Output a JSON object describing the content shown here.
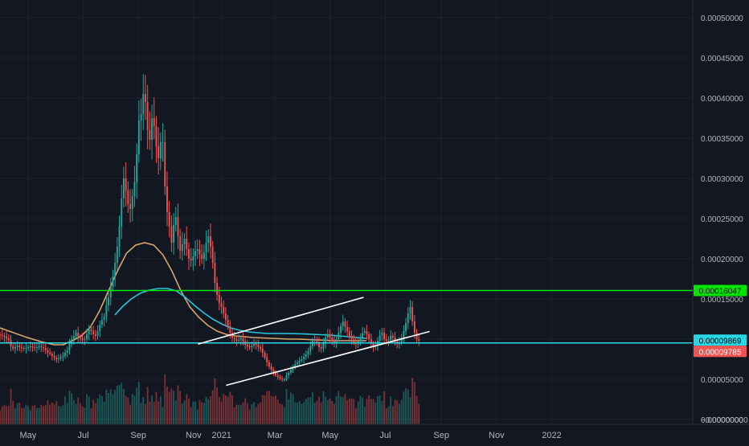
{
  "chart_data": {
    "type": "candlestick",
    "y_axis": {
      "ticks": [
        "0.00050000",
        "0.00045000",
        "0.00040000",
        "0.00035000",
        "0.00030000",
        "0.00025000",
        "0.00020000",
        "0.00015000",
        "0.00010000",
        "0.00005000",
        "0.00000000",
        "−0.00000000"
      ],
      "tick_values": [
        0.0005,
        0.00045,
        0.0004,
        0.00035,
        0.0003,
        0.00025,
        0.0002,
        0.00015,
        0.0001,
        5e-05,
        0.0,
        -1e-07
      ],
      "range": [
        -6e-06,
        0.000522
      ]
    },
    "x_axis": {
      "labels": [
        "May",
        "Jul",
        "Sep",
        "Nov",
        "2021",
        "Mar",
        "May",
        "Jul",
        "Sep",
        "Nov",
        "2022"
      ],
      "label_positions_days": [
        -214,
        -153,
        -92,
        -31,
        0,
        59,
        120,
        181,
        243,
        304,
        365
      ],
      "range_days": [
        -245,
        521
      ]
    },
    "price_tags": [
      {
        "value": "0.00016047",
        "price": 0.00016047,
        "color": "#00e600",
        "text_color": "#000000"
      },
      {
        "value": "0.00009869",
        "price": 9.869e-05,
        "color": "#26d7e6",
        "text_color": "#000000"
      },
      {
        "value": "0.00009785",
        "price": 9.785e-05,
        "color": "#f05350",
        "text_color": "#ffffff"
      }
    ],
    "horizontal_lines": [
      {
        "price": 0.00016047,
        "color": "#00e600"
      },
      {
        "price": 9.52e-05,
        "color": "#26d7e6"
      }
    ],
    "channel_lines": [
      {
        "from": {
          "day": -26,
          "price": 9.38e-05
        },
        "to": {
          "day": 157,
          "price": 0.000152
        }
      },
      {
        "from": {
          "day": 5,
          "price": 4.25e-05
        },
        "to": {
          "day": 230,
          "price": 0.0001095
        }
      }
    ],
    "ma_slow": {
      "color": "#d8a56c",
      "days": [
        -245,
        -230,
        -215,
        -200,
        -185,
        -175,
        -165,
        -155,
        -145,
        -135,
        -125,
        -115,
        -105,
        -95,
        -85,
        -75,
        -65,
        -55,
        -45,
        -35,
        -25,
        -15,
        -5,
        5,
        15,
        25,
        35,
        45,
        55,
        65,
        75,
        85,
        95,
        105,
        115,
        125,
        135,
        145,
        155,
        160
      ],
      "values": [
        0.000114,
        0.000108,
        0.000102,
        9.7e-05,
        9.3e-05,
        9.3e-05,
        9.8e-05,
        0.000104,
        0.000115,
        0.000135,
        0.00016,
        0.000185,
        0.000207,
        0.000217,
        0.00022,
        0.000217,
        0.000205,
        0.000185,
        0.00016,
        0.00014,
        0.000127,
        0.000117,
        0.00011,
        0.000106,
        0.000104,
        0.000103,
        0.000102,
        0.0001015,
        0.000101,
        0.0001005,
        0.0001,
        0.0001,
        9.95e-05,
        9.9e-05,
        9.85e-05,
        9.8e-05,
        9.8e-05,
        9.8e-05,
        9.8e-05,
        9.8e-05
      ]
    },
    "ma_fast": {
      "color": "#26c6da",
      "days": [
        -118,
        -110,
        -100,
        -90,
        -80,
        -70,
        -60,
        -50,
        -40,
        -30,
        -20,
        -10,
        0,
        10,
        20,
        30,
        40,
        50,
        60,
        70,
        80,
        90,
        100,
        110,
        120,
        130,
        140,
        150,
        160
      ],
      "values": [
        0.00013,
        0.00014,
        0.00015,
        0.000157,
        0.000161,
        0.000163,
        0.000163,
        0.00016,
        0.000152,
        0.000142,
        0.000133,
        0.000125,
        0.000119,
        0.000114,
        0.000111,
        0.000109,
        0.000108,
        0.000107,
        0.000107,
        0.000107,
        0.0001068,
        0.0001065,
        0.000106,
        0.0001055,
        0.000105,
        0.000104,
        0.000103,
        0.000102,
        0.000101
      ]
    },
    "candles": {
      "start_day": -245,
      "step_days": 2.4,
      "up_color": "#26a69a",
      "down_color": "#ef5350",
      "close": [
        0.000105,
        0.000104,
        0.000103,
        0.000101,
        9.9e-05,
        9.1e-05,
        8.8e-05,
        9e-05,
        9.2e-05,
        9e-05,
        8.9e-05,
        8.8e-05,
        8.9e-05,
        9e-05,
        9.1e-05,
        9e-05,
        8.9e-05,
        9e-05,
        9.1e-05,
        9e-05,
        8.9e-05,
        8.6e-05,
        8.3e-05,
        8.2e-05,
        7.9e-05,
        7.7e-05,
        7.5e-05,
        7.6e-05,
        7.8e-05,
        7.9e-05,
        8.3e-05,
        8.6e-05,
        9.4e-05,
        0.0001,
        0.000104,
        0.000108,
        0.000103,
        0.000101,
        9.9e-05,
        0.0001,
        0.000106,
        0.000112,
        0.00011,
        0.000106,
        0.000104,
        0.00011,
        0.000118,
        0.000124,
        0.000128,
        0.000142,
        0.000152,
        0.000165,
        0.000178,
        0.000195,
        0.000215,
        0.00024,
        0.000275,
        0.0003,
        0.000285,
        0.000268,
        0.000262,
        0.000278,
        0.000295,
        0.00033,
        0.000372,
        0.00038,
        0.000405,
        0.000395,
        0.00036,
        0.000348,
        0.000375,
        0.000365,
        0.00034,
        0.000325,
        0.000345,
        0.000345,
        0.00029,
        0.000258,
        0.00024,
        0.00022,
        0.000242,
        0.000252,
        0.000228,
        0.00021,
        0.000218,
        0.000225,
        0.000212,
        0.0002,
        0.000198,
        0.000203,
        0.00021,
        0.000212,
        0.000205,
        0.0002,
        0.000208,
        0.00022,
        0.000228,
        0.000215,
        0.000195,
        0.00017,
        0.000155,
        0.000145,
        0.00014,
        0.000132,
        0.000124,
        0.000116,
        0.000108,
        0.000102,
        0.0001,
        9.8e-05,
        9.9e-05,
        0.000101,
        9.7e-05,
        9.3e-05,
        9.1e-05,
        9e-05,
        9.2e-05,
        9.4e-05,
        9.3e-05,
        9e-05,
        8.8e-05,
        8.3e-05,
        7.7e-05,
        7.1e-05,
        6.6e-05,
        6.2e-05,
        5.8e-05,
        5.5e-05,
        5.3e-05,
        5.1e-05,
        5e-05,
        5e-05,
        5.5e-05,
        5.8e-05,
        6.2e-05,
        6.6e-05,
        6.9e-05,
        7.1e-05,
        7.3e-05,
        7.5e-05,
        7.8e-05,
        8.1e-05,
        8.5e-05,
        9.1e-05,
        9.8e-05,
        0.0001,
        9.6e-05,
        9e-05,
        8.8e-05,
        9.5e-05,
        0.000102,
        0.000106,
        0.000102,
        9.8e-05,
        9.5e-05,
        0.0001,
        0.000108,
        0.000116,
        0.000122,
        0.000115,
        0.00011,
        0.000104,
        0.0001,
        9.6e-05,
        9.4e-05,
        9.7e-05,
        0.000102,
        0.000108,
        0.00011,
        0.000106,
        0.0001,
        9.4e-05,
        9e-05,
        9.2e-05,
        9.8e-05,
        0.000105,
        0.000108,
        0.0001,
        9.8e-05,
        9.9e-05,
        0.000104,
        0.000102,
        9.7e-05,
        9.4e-05,
        9.6e-05,
        0.000102,
        0.00011,
        0.00012,
        0.000132,
        0.00014,
        0.000122,
        0.000108,
        0.0001,
        9.8e-05
      ]
    }
  }
}
